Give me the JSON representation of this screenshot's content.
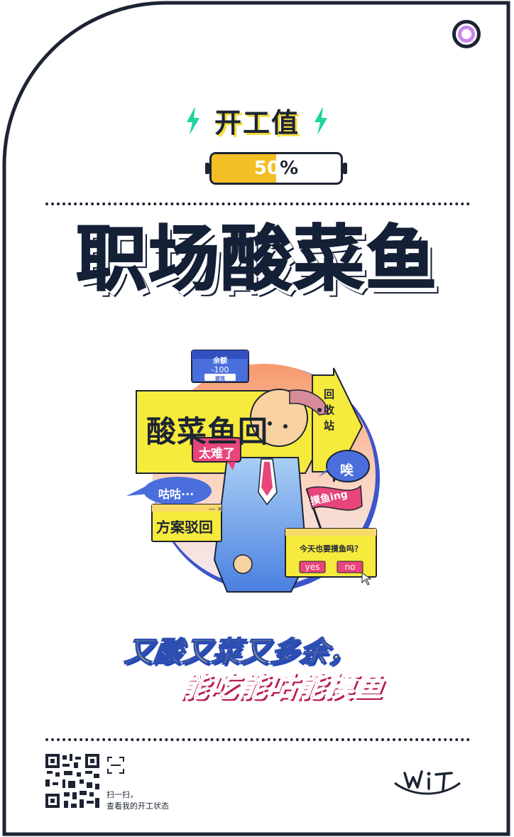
{
  "header": {
    "title": "开工值",
    "accent_color": "#1fd3a0",
    "icon_left": "lightning-icon",
    "icon_right": "lightning-icon"
  },
  "progress": {
    "value": 0.5,
    "number": "50",
    "suffix": "%",
    "fill_color": "#f3bf24"
  },
  "main_title": "职场酸菜鱼",
  "illustration": {
    "bill_title": "余额",
    "bill_amount": "-100",
    "bill_button": "提现",
    "arrow_label": "酸菜鱼回",
    "recycle_label": "回收站",
    "bubble_hard": "太难了",
    "bubble_ai": "唉",
    "bubble_gugu": "咕咕···",
    "window_rejected": "方案驳回",
    "flag_label": "摸鱼ing",
    "dialog_question": "今天也要摸鱼吗？",
    "dialog_yes": "yes",
    "dialog_no": "no"
  },
  "slogan": {
    "line1": "又酸又菜又多余，",
    "line2": "能吃能咕能摸鱼"
  },
  "footer": {
    "scan_line1": "扫一扫，",
    "scan_line2": "查看我的开工状态",
    "logo_text": "WIT",
    "scan_icon": "scan-icon",
    "qr_icon": "qr-code"
  }
}
